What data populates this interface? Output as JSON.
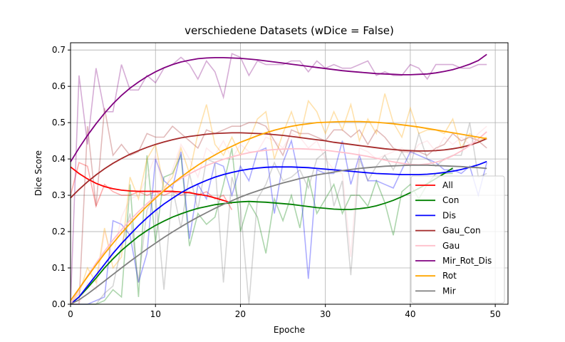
{
  "chart_data": {
    "type": "line",
    "title": "verschiedene Datasets (wDice = False)",
    "xlabel": "Epoche",
    "ylabel": "Dice Score",
    "xlim": [
      0,
      51.5
    ],
    "ylim": [
      0,
      0.72
    ],
    "xticks": [
      0,
      10,
      20,
      30,
      40,
      50
    ],
    "yticks": [
      0.0,
      0.1,
      0.2,
      0.3,
      0.4,
      0.5,
      0.6,
      0.7
    ],
    "grid": true,
    "legend_position": "lower-right",
    "series": [
      {
        "name": "All",
        "color": "#ff0000",
        "x": [
          0,
          1,
          2,
          3,
          4,
          5,
          6,
          7,
          8,
          9,
          10,
          11,
          12,
          13,
          14,
          15,
          16,
          17,
          18,
          19
        ],
        "values": [
          0.3,
          0.39,
          0.38,
          0.27,
          0.33,
          0.31,
          0.3,
          0.3,
          0.31,
          0.3,
          0.31,
          0.3,
          0.31,
          0.3,
          0.31,
          0.3,
          0.31,
          0.29,
          0.3,
          0.26
        ],
        "fit": [
          0.378,
          0.36,
          0.345,
          0.333,
          0.324,
          0.318,
          0.314,
          0.312,
          0.311,
          0.311,
          0.311,
          0.311,
          0.311,
          0.309,
          0.307,
          0.303,
          0.299,
          0.293,
          0.286,
          0.278
        ]
      },
      {
        "name": "Con",
        "color": "#008000",
        "x": [
          0,
          1,
          2,
          3,
          4,
          5,
          6,
          7,
          8,
          9,
          10,
          11,
          12,
          13,
          14,
          15,
          16,
          17,
          18,
          19,
          20,
          21,
          22,
          23,
          24,
          25,
          26,
          27,
          28,
          29,
          30,
          31,
          32,
          33,
          34,
          35,
          36,
          37,
          38,
          39,
          40,
          41,
          42,
          43,
          44,
          45
        ],
        "values": [
          0.0,
          0.0,
          0.0,
          0.0,
          0.01,
          0.04,
          0.02,
          0.33,
          0.02,
          0.41,
          0.17,
          0.35,
          0.36,
          0.41,
          0.16,
          0.25,
          0.22,
          0.24,
          0.33,
          0.43,
          0.2,
          0.28,
          0.24,
          0.14,
          0.29,
          0.23,
          0.3,
          0.21,
          0.35,
          0.25,
          0.29,
          0.33,
          0.25,
          0.3,
          0.3,
          0.27,
          0.34,
          0.28,
          0.19,
          0.31,
          0.33,
          0.29,
          0.33,
          0.36,
          0.36,
          0.36
        ],
        "fit": [
          0.0,
          0.02,
          0.045,
          0.072,
          0.1,
          0.125,
          0.148,
          0.168,
          0.187,
          0.203,
          0.217,
          0.229,
          0.24,
          0.249,
          0.257,
          0.264,
          0.269,
          0.274,
          0.277,
          0.28,
          0.282,
          0.283,
          0.282,
          0.281,
          0.279,
          0.277,
          0.275,
          0.272,
          0.269,
          0.266,
          0.264,
          0.262,
          0.261,
          0.261,
          0.263,
          0.266,
          0.271,
          0.278,
          0.286,
          0.296,
          0.307,
          0.319,
          0.332,
          0.346,
          0.36,
          0.375
        ]
      },
      {
        "name": "Dis",
        "color": "#0000ff",
        "x": [
          0,
          1,
          2,
          3,
          4,
          5,
          6,
          7,
          8,
          9,
          10,
          11,
          12,
          13,
          14,
          15,
          16,
          17,
          18,
          19,
          20,
          21,
          22,
          23,
          24,
          25,
          26,
          27,
          28,
          29,
          30,
          31,
          32,
          33,
          34,
          35,
          36,
          37,
          38,
          39,
          40,
          41,
          42,
          43,
          44,
          45,
          46,
          47,
          48,
          49
        ],
        "values": [
          0.0,
          0.0,
          0.0,
          0.01,
          0.02,
          0.23,
          0.22,
          0.19,
          0.06,
          0.14,
          0.4,
          0.34,
          0.32,
          0.42,
          0.18,
          0.33,
          0.29,
          0.39,
          0.38,
          0.3,
          0.38,
          0.34,
          0.42,
          0.43,
          0.25,
          0.39,
          0.45,
          0.34,
          0.07,
          0.37,
          0.36,
          0.36,
          0.45,
          0.33,
          0.41,
          0.34,
          0.34,
          0.33,
          0.32,
          0.37,
          0.42,
          0.41,
          0.4,
          0.39,
          0.37,
          0.37,
          0.36,
          0.38,
          0.3,
          0.39
        ],
        "fit": [
          0.0,
          0.02,
          0.05,
          0.08,
          0.11,
          0.14,
          0.167,
          0.192,
          0.216,
          0.238,
          0.258,
          0.276,
          0.292,
          0.307,
          0.32,
          0.331,
          0.341,
          0.35,
          0.357,
          0.363,
          0.368,
          0.372,
          0.375,
          0.377,
          0.378,
          0.378,
          0.378,
          0.377,
          0.376,
          0.374,
          0.372,
          0.37,
          0.368,
          0.366,
          0.364,
          0.362,
          0.36,
          0.359,
          0.358,
          0.357,
          0.357,
          0.357,
          0.358,
          0.36,
          0.363,
          0.366,
          0.371,
          0.377,
          0.384,
          0.393
        ]
      },
      {
        "name": "Gau_Con",
        "color": "#a52a2a",
        "x": [
          0,
          1,
          2,
          3,
          4,
          5,
          6,
          7,
          8,
          9,
          10,
          11,
          12,
          13,
          14,
          15,
          16,
          17,
          18,
          19,
          20,
          21,
          22,
          23,
          24,
          25,
          26,
          27,
          28,
          29,
          30,
          31,
          32,
          33,
          34,
          35,
          36,
          37,
          38,
          39,
          40,
          41,
          42,
          43,
          44,
          45,
          46,
          47,
          48,
          49
        ],
        "values": [
          0.0,
          0.0,
          0.49,
          0.27,
          0.54,
          0.41,
          0.44,
          0.41,
          0.42,
          0.47,
          0.46,
          0.46,
          0.49,
          0.47,
          0.45,
          0.43,
          0.48,
          0.47,
          0.48,
          0.49,
          0.49,
          0.5,
          0.5,
          0.49,
          0.45,
          0.41,
          0.48,
          0.47,
          0.47,
          0.46,
          0.45,
          0.48,
          0.48,
          0.46,
          0.48,
          0.44,
          0.48,
          0.46,
          0.43,
          0.42,
          0.42,
          0.42,
          0.41,
          0.43,
          0.44,
          0.47,
          0.45,
          0.46,
          0.45,
          0.43
        ],
        "fit": [
          0.293,
          0.316,
          0.337,
          0.356,
          0.373,
          0.388,
          0.401,
          0.413,
          0.423,
          0.432,
          0.44,
          0.447,
          0.453,
          0.458,
          0.462,
          0.465,
          0.468,
          0.47,
          0.471,
          0.472,
          0.472,
          0.471,
          0.47,
          0.469,
          0.467,
          0.465,
          0.462,
          0.459,
          0.456,
          0.453,
          0.45,
          0.446,
          0.443,
          0.44,
          0.437,
          0.434,
          0.431,
          0.428,
          0.426,
          0.424,
          0.423,
          0.422,
          0.422,
          0.423,
          0.425,
          0.428,
          0.432,
          0.438,
          0.446,
          0.456
        ]
      },
      {
        "name": "Gau",
        "color": "#ffc0cb",
        "x": [
          0,
          1,
          2,
          3,
          4,
          5,
          6,
          7,
          8,
          9,
          10,
          11,
          12,
          13,
          14,
          15,
          16,
          17,
          18,
          19,
          20,
          21,
          22,
          23,
          24,
          25,
          26,
          27,
          28,
          29,
          30,
          31,
          32,
          33,
          34,
          35,
          36,
          37,
          38,
          39,
          40,
          41,
          42,
          43,
          44,
          45,
          46,
          47,
          48,
          49
        ],
        "values": [
          0.0,
          0.0,
          0.06,
          0.04,
          0.2,
          0.13,
          0.24,
          0.29,
          0.3,
          0.35,
          0.41,
          0.31,
          0.37,
          0.44,
          0.4,
          0.35,
          0.43,
          0.41,
          0.45,
          0.4,
          0.44,
          0.42,
          0.42,
          0.46,
          0.45,
          0.43,
          0.47,
          0.46,
          0.43,
          0.45,
          0.4,
          0.37,
          0.36,
          0.13,
          0.43,
          0.42,
          0.4,
          0.41,
          0.42,
          0.43,
          0.41,
          0.44,
          0.45,
          0.42,
          0.46,
          0.44,
          0.46,
          0.44,
          0.47,
          0.49
        ],
        "fit": [
          0.0,
          0.04,
          0.078,
          0.113,
          0.146,
          0.177,
          0.205,
          0.231,
          0.255,
          0.277,
          0.297,
          0.315,
          0.331,
          0.346,
          0.359,
          0.371,
          0.382,
          0.391,
          0.399,
          0.406,
          0.412,
          0.417,
          0.421,
          0.424,
          0.426,
          0.427,
          0.428,
          0.428,
          0.427,
          0.426,
          0.424,
          0.421,
          0.418,
          0.415,
          0.411,
          0.407,
          0.402,
          0.397,
          0.392,
          0.388,
          0.385,
          0.384,
          0.386,
          0.391,
          0.398,
          0.409,
          0.422,
          0.437,
          0.455,
          0.475
        ]
      },
      {
        "name": "Mir_Rot_Dis",
        "color": "#800080",
        "x": [
          0,
          1,
          2,
          3,
          4,
          5,
          6,
          7,
          8,
          9,
          10,
          11,
          12,
          13,
          14,
          15,
          16,
          17,
          18,
          19,
          20,
          21,
          22,
          23,
          24,
          25,
          26,
          27,
          28,
          29,
          30,
          31,
          32,
          33,
          34,
          35,
          36,
          37,
          38,
          39,
          40,
          41,
          42,
          43,
          44,
          45,
          46,
          47,
          48,
          49
        ],
        "values": [
          0.0,
          0.63,
          0.44,
          0.65,
          0.53,
          0.53,
          0.66,
          0.59,
          0.59,
          0.63,
          0.61,
          0.65,
          0.66,
          0.68,
          0.66,
          0.62,
          0.67,
          0.64,
          0.57,
          0.69,
          0.68,
          0.63,
          0.67,
          0.66,
          0.66,
          0.66,
          0.67,
          0.67,
          0.64,
          0.67,
          0.65,
          0.66,
          0.65,
          0.65,
          0.66,
          0.67,
          0.63,
          0.64,
          0.63,
          0.63,
          0.66,
          0.65,
          0.62,
          0.66,
          0.66,
          0.66,
          0.65,
          0.65,
          0.66,
          0.66
        ],
        "fit": [
          0.392,
          0.43,
          0.465,
          0.497,
          0.526,
          0.552,
          0.575,
          0.595,
          0.612,
          0.627,
          0.64,
          0.651,
          0.66,
          0.667,
          0.672,
          0.676,
          0.678,
          0.679,
          0.679,
          0.678,
          0.677,
          0.675,
          0.673,
          0.67,
          0.667,
          0.664,
          0.661,
          0.658,
          0.655,
          0.652,
          0.649,
          0.646,
          0.643,
          0.641,
          0.639,
          0.637,
          0.635,
          0.634,
          0.633,
          0.632,
          0.632,
          0.633,
          0.634,
          0.637,
          0.641,
          0.646,
          0.653,
          0.661,
          0.671,
          0.688
        ]
      },
      {
        "name": "Rot",
        "color": "#ffa500",
        "x": [
          0,
          1,
          2,
          3,
          4,
          5,
          6,
          7,
          8,
          9,
          10,
          11,
          12,
          13,
          14,
          15,
          16,
          17,
          18,
          19,
          20,
          21,
          22,
          23,
          24,
          25,
          26,
          27,
          28,
          29,
          30,
          31,
          32,
          33,
          34,
          35,
          36,
          37,
          38,
          39,
          40,
          41,
          42,
          43,
          44,
          45,
          46,
          47,
          48,
          49
        ],
        "values": [
          0.0,
          0.03,
          0.1,
          0.06,
          0.21,
          0.1,
          0.13,
          0.35,
          0.29,
          0.4,
          0.44,
          0.32,
          0.35,
          0.43,
          0.36,
          0.47,
          0.55,
          0.44,
          0.41,
          0.46,
          0.41,
          0.45,
          0.51,
          0.53,
          0.4,
          0.47,
          0.53,
          0.46,
          0.56,
          0.53,
          0.47,
          0.53,
          0.48,
          0.55,
          0.45,
          0.51,
          0.47,
          0.58,
          0.5,
          0.46,
          0.54,
          0.47,
          0.48,
          0.48,
          0.47,
          0.51,
          0.43,
          0.47,
          0.45,
          0.46
        ],
        "fit": [
          0.01,
          0.043,
          0.076,
          0.108,
          0.139,
          0.168,
          0.196,
          0.222,
          0.247,
          0.27,
          0.292,
          0.313,
          0.332,
          0.35,
          0.367,
          0.383,
          0.398,
          0.411,
          0.424,
          0.435,
          0.446,
          0.455,
          0.464,
          0.472,
          0.479,
          0.485,
          0.49,
          0.494,
          0.497,
          0.5,
          0.501,
          0.502,
          0.503,
          0.503,
          0.503,
          0.502,
          0.501,
          0.499,
          0.497,
          0.494,
          0.491,
          0.488,
          0.484,
          0.48,
          0.476,
          0.472,
          0.468,
          0.464,
          0.46,
          0.456
        ]
      },
      {
        "name": "Mir",
        "color": "#808080",
        "x": [
          0,
          1,
          2,
          3,
          4,
          5,
          6,
          7,
          8,
          9,
          10,
          11,
          12,
          13,
          14,
          15,
          16,
          17,
          18,
          19,
          20,
          21,
          22,
          23,
          24,
          25,
          26,
          27,
          28,
          29,
          30,
          31,
          32,
          33,
          34,
          35,
          36,
          37,
          38,
          39,
          40,
          41,
          42,
          43,
          44,
          45,
          46,
          47,
          48,
          49
        ],
        "values": [
          0.0,
          0.0,
          0.0,
          0.0,
          0.03,
          0.05,
          0.16,
          0.25,
          0.06,
          0.26,
          0.3,
          0.04,
          0.32,
          0.21,
          0.36,
          0.26,
          0.4,
          0.39,
          0.06,
          0.35,
          0.27,
          0.0,
          0.29,
          0.33,
          0.39,
          0.34,
          0.35,
          0.37,
          0.32,
          0.4,
          0.42,
          0.27,
          0.34,
          0.08,
          0.4,
          0.34,
          0.38,
          0.41,
          0.37,
          0.42,
          0.38,
          0.47,
          0.4,
          0.38,
          0.4,
          0.41,
          0.41,
          0.5,
          0.35,
          0.36
        ],
        "fit": [
          0.0,
          0.012,
          0.028,
          0.046,
          0.064,
          0.082,
          0.1,
          0.118,
          0.135,
          0.152,
          0.168,
          0.184,
          0.199,
          0.213,
          0.227,
          0.24,
          0.252,
          0.264,
          0.275,
          0.285,
          0.295,
          0.304,
          0.312,
          0.32,
          0.327,
          0.334,
          0.34,
          0.346,
          0.351,
          0.356,
          0.36,
          0.364,
          0.368,
          0.371,
          0.374,
          0.376,
          0.378,
          0.38,
          0.381,
          0.382,
          0.383,
          0.383,
          0.383,
          0.382,
          0.381,
          0.38,
          0.379,
          0.377,
          0.376,
          0.374
        ]
      }
    ]
  }
}
